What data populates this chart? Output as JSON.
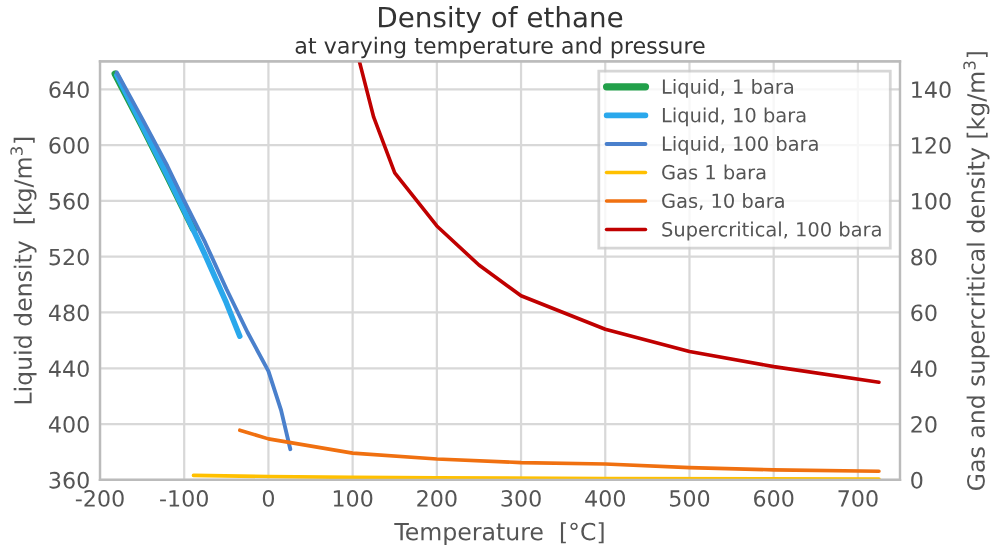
{
  "chart_data": {
    "type": "line",
    "title": "Density of ethane",
    "subtitle": "at varying temperature and pressure",
    "xlabel": "Temperature  [°C]",
    "ylabel": "Liquid density  [kg/m$^{3}$]",
    "y2label": "Gas and supercritical density [kg/m$^{3}$]",
    "xlim": [
      -200,
      750
    ],
    "xticks": [
      -200,
      -100,
      0,
      100,
      200,
      300,
      400,
      500,
      600,
      700
    ],
    "ylim": [
      360,
      660
    ],
    "yticks": [
      360,
      400,
      440,
      480,
      520,
      560,
      600,
      640
    ],
    "y2lim": [
      0,
      150
    ],
    "y2ticks": [
      0,
      20,
      40,
      60,
      80,
      100,
      120,
      140
    ],
    "grid": true,
    "legend": "top right",
    "series": [
      {
        "name": "Liquid, 1 bara",
        "color": "#22a04a",
        "x": [
          -182,
          -150,
          -120,
          -89
        ],
        "values": [
          651,
          614,
          578,
          540
        ]
      },
      {
        "name": "Liquid, 10 bara",
        "color": "#2aa8ec",
        "x": [
          -180,
          -150,
          -120,
          -100,
          -75,
          -50,
          -34
        ],
        "values": [
          650,
          614,
          578,
          553,
          521,
          487,
          463
        ]
      },
      {
        "name": "Liquid, 100 bara",
        "color": "#4a80cc",
        "x": [
          -180,
          -150,
          -120,
          -100,
          -75,
          -50,
          -25,
          0,
          15,
          26
        ],
        "values": [
          652,
          619,
          585,
          560,
          530,
          497,
          466,
          438,
          410,
          382
        ]
      },
      {
        "name": "Gas 1 bara",
        "color": "#ffc000",
        "axis": "y2",
        "x": [
          -89,
          0,
          100,
          200,
          400,
          725
        ],
        "values": [
          1.6,
          1.2,
          0.9,
          0.7,
          0.5,
          0.3
        ]
      },
      {
        "name": "Gas, 10 bara",
        "color": "#f07010",
        "axis": "y2",
        "x": [
          -34,
          0,
          100,
          200,
          300,
          400,
          500,
          600,
          725
        ],
        "values": [
          17.8,
          14.7,
          9.6,
          7.5,
          6.2,
          5.7,
          4.4,
          3.6,
          3.1
        ]
      },
      {
        "name": "Supercritical, 100 bara",
        "color": "#c00000",
        "axis": "y2",
        "x": [
          108,
          125,
          150,
          200,
          250,
          300,
          400,
          500,
          600,
          725
        ],
        "values": [
          150,
          130,
          110,
          91,
          77,
          66,
          54,
          46,
          40.6,
          35
        ]
      }
    ]
  }
}
